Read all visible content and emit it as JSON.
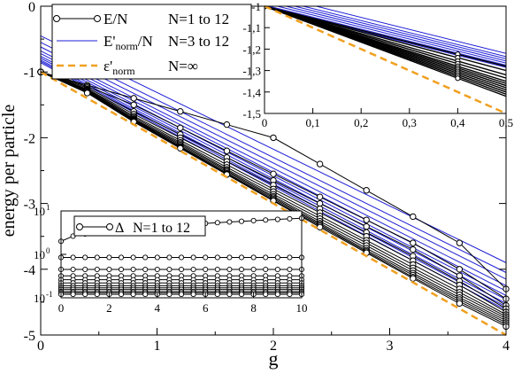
{
  "chart_data": [
    {
      "panel": "main",
      "type": "line",
      "xlabel": "g",
      "ylabel": "energy per particle",
      "xlim": [
        0,
        4
      ],
      "ylim": [
        -5,
        0
      ],
      "x_ticks": [
        0,
        1,
        2,
        3,
        4
      ],
      "y_ticks": [
        0,
        -1,
        -2,
        -3,
        -4,
        -5
      ],
      "x_tick_labels": [
        "0",
        "1",
        "2",
        "3",
        "4"
      ],
      "y_tick_labels": [
        "0",
        "-1",
        "-2",
        "-3",
        "-4",
        "-5"
      ],
      "legend_position": "top-left",
      "legend": [
        {
          "name": "E/N",
          "range": "N=1 to 12",
          "style": "black line with open circles"
        },
        {
          "name": "E'norm/N",
          "range": "N=3 to 12",
          "style": "blue line"
        },
        {
          "name": "ε'norm",
          "range": "N=∞",
          "style": "orange dashed line"
        }
      ],
      "colors": {
        "black_series": "#000000",
        "blue_series": "#1f1fd6",
        "limit": "#f0a020"
      },
      "x_samples": [
        0,
        0.4,
        0.8,
        1.2,
        1.6,
        2.0,
        2.4,
        2.8,
        3.2,
        3.6,
        4.0
      ],
      "black_series": [
        {
          "N": 1,
          "y": [
            -1.0,
            -1.2,
            -1.4,
            -1.6,
            -1.8,
            -2.0,
            -2.4,
            -2.8,
            -3.2,
            -3.6,
            -4.3
          ]
        },
        {
          "N": 2,
          "y": [
            -1.0,
            -1.22,
            -1.5,
            -1.85,
            -2.2,
            -2.55,
            -2.9,
            -3.25,
            -3.6,
            -4.0,
            -4.45
          ]
        },
        {
          "N": 3,
          "y": [
            -1.0,
            -1.24,
            -1.6,
            -1.95,
            -2.3,
            -2.65,
            -3.0,
            -3.35,
            -3.7,
            -4.1,
            -4.55
          ]
        },
        {
          "N": 4,
          "y": [
            -1.0,
            -1.26,
            -1.64,
            -2.0,
            -2.36,
            -2.72,
            -3.08,
            -3.44,
            -3.8,
            -4.18,
            -4.6
          ]
        },
        {
          "N": 5,
          "y": [
            -1.0,
            -1.27,
            -1.67,
            -2.04,
            -2.41,
            -2.78,
            -3.14,
            -3.5,
            -3.87,
            -4.24,
            -4.65
          ]
        },
        {
          "N": 6,
          "y": [
            -1.0,
            -1.28,
            -1.69,
            -2.07,
            -2.45,
            -2.82,
            -3.19,
            -3.56,
            -3.93,
            -4.3,
            -4.69
          ]
        },
        {
          "N": 7,
          "y": [
            -1.0,
            -1.29,
            -1.71,
            -2.09,
            -2.48,
            -2.86,
            -3.23,
            -3.6,
            -3.98,
            -4.35,
            -4.72
          ]
        },
        {
          "N": 8,
          "y": [
            -1.0,
            -1.3,
            -1.72,
            -2.11,
            -2.5,
            -2.89,
            -3.27,
            -3.64,
            -4.02,
            -4.39,
            -4.75
          ]
        },
        {
          "N": 9,
          "y": [
            -1.0,
            -1.3,
            -1.73,
            -2.13,
            -2.52,
            -2.91,
            -3.3,
            -3.68,
            -4.06,
            -4.43,
            -4.78
          ]
        },
        {
          "N": 10,
          "y": [
            -1.0,
            -1.31,
            -1.74,
            -2.14,
            -2.54,
            -2.93,
            -3.32,
            -3.71,
            -4.09,
            -4.46,
            -4.81
          ]
        },
        {
          "N": 11,
          "y": [
            -1.0,
            -1.31,
            -1.75,
            -2.15,
            -2.55,
            -2.95,
            -3.34,
            -3.73,
            -4.12,
            -4.49,
            -4.84
          ]
        },
        {
          "N": 12,
          "y": [
            -1.0,
            -1.32,
            -1.76,
            -2.16,
            -2.56,
            -2.96,
            -3.36,
            -3.75,
            -4.14,
            -4.52,
            -4.87
          ]
        }
      ],
      "blue_series": [
        {
          "N": 3,
          "points": [
            [
              0,
              -0.45
            ],
            [
              4,
              -3.9
            ]
          ]
        },
        {
          "N": 4,
          "points": [
            [
              0,
              -0.55
            ],
            [
              4,
              -4.05
            ]
          ]
        },
        {
          "N": 5,
          "points": [
            [
              0,
              -0.62
            ],
            [
              4,
              -4.15
            ]
          ]
        },
        {
          "N": 6,
          "points": [
            [
              0,
              -0.68
            ],
            [
              4,
              -4.25
            ]
          ]
        },
        {
          "N": 7,
          "points": [
            [
              0,
              -0.72
            ],
            [
              4,
              -4.33
            ]
          ]
        },
        {
          "N": 8,
          "points": [
            [
              0,
              -0.76
            ],
            [
              4,
              -4.4
            ]
          ]
        },
        {
          "N": 9,
          "points": [
            [
              0,
              -0.79
            ],
            [
              4,
              -4.46
            ]
          ]
        },
        {
          "N": 10,
          "points": [
            [
              0,
              -0.82
            ],
            [
              4,
              -4.52
            ]
          ]
        },
        {
          "N": 11,
          "points": [
            [
              0,
              -0.84
            ],
            [
              4,
              -4.57
            ]
          ]
        },
        {
          "N": 12,
          "points": [
            [
              0,
              -0.86
            ],
            [
              4,
              -4.62
            ]
          ]
        }
      ],
      "limit_series": {
        "name": "ε'norm",
        "points": [
          [
            0,
            -1.0
          ],
          [
            4,
            -5.0
          ]
        ]
      }
    },
    {
      "panel": "inset-top-right",
      "type": "line",
      "xlim": [
        0,
        0.5
      ],
      "ylim": [
        -1.5,
        -1.0
      ],
      "x_ticks": [
        0,
        0.1,
        0.2,
        0.3,
        0.4,
        0.5
      ],
      "y_ticks": [
        -1,
        -1.1,
        -1.2,
        -1.3,
        -1.4,
        -1.5
      ],
      "x_tick_labels": [
        "0",
        "0,1",
        "0,2",
        "0,3",
        "0,4",
        "0,5"
      ],
      "y_tick_labels": [
        "-1",
        "-1,1",
        "-1,2",
        "-1,3",
        "-1,4",
        "-1,5"
      ],
      "black_lines": [
        {
          "N": 1,
          "y_at_0_5": -1.28
        },
        {
          "N": 2,
          "y_at_0_5": -1.3
        },
        {
          "N": 3,
          "y_at_0_5": -1.32
        },
        {
          "N": 4,
          "y_at_0_5": -1.335
        },
        {
          "N": 5,
          "y_at_0_5": -1.35
        },
        {
          "N": 6,
          "y_at_0_5": -1.36
        },
        {
          "N": 7,
          "y_at_0_5": -1.37
        },
        {
          "N": 8,
          "y_at_0_5": -1.38
        },
        {
          "N": 9,
          "y_at_0_5": -1.39
        },
        {
          "N": 10,
          "y_at_0_5": -1.4
        },
        {
          "N": 11,
          "y_at_0_5": -1.41
        },
        {
          "N": 12,
          "y_at_0_5": -1.42
        }
      ],
      "circle_marker_x": 0.4,
      "blue_lines_y_at_0": [
        -0.94,
        -0.955,
        -0.965,
        -0.975,
        -0.985,
        -0.995,
        -1.005
      ],
      "blue_lines_slope": -0.56,
      "limit": {
        "points": [
          [
            0,
            -1.0
          ],
          [
            0.5,
            -1.5
          ]
        ]
      }
    },
    {
      "panel": "inset-bottom-left",
      "type": "line",
      "yscale": "log",
      "xlim": [
        0,
        10
      ],
      "ylim": [
        0.1,
        10
      ],
      "x_ticks": [
        0,
        2,
        4,
        6,
        8,
        10
      ],
      "x_tick_labels": [
        "0",
        "2",
        "4",
        "6",
        "8",
        "10"
      ],
      "y_tick_exponents": [
        1,
        0,
        -1
      ],
      "legend": [
        {
          "name": "Δ",
          "range": "N=1 to 12"
        }
      ],
      "x_points": [
        0,
        0.5,
        1,
        1.5,
        2,
        2.5,
        3,
        3.5,
        4,
        4.5,
        5,
        5.5,
        6,
        6.5,
        7,
        7.5,
        8,
        8.5,
        9,
        9.5,
        10
      ],
      "top_series": {
        "N": 1,
        "y_start": 2.0,
        "y_end": 6.8
      },
      "flat_series": [
        {
          "N": 2,
          "y": 0.85
        },
        {
          "N": 3,
          "y": 0.45
        },
        {
          "N": 4,
          "y": 0.32
        },
        {
          "N": 5,
          "y": 0.26
        },
        {
          "N": 6,
          "y": 0.22
        },
        {
          "N": 7,
          "y": 0.19
        },
        {
          "N": 8,
          "y": 0.17
        },
        {
          "N": 9,
          "y": 0.155
        },
        {
          "N": 10,
          "y": 0.14
        },
        {
          "N": 11,
          "y": 0.13
        },
        {
          "N": 12,
          "y": 0.12
        }
      ]
    }
  ]
}
